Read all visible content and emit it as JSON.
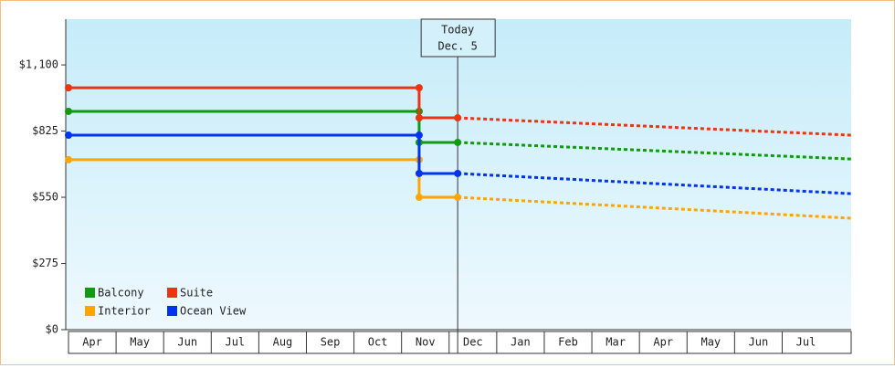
{
  "chart_data": {
    "type": "line",
    "ylim": [
      0,
      1290
    ],
    "yticks": [
      {
        "value": 0,
        "label": "$0"
      },
      {
        "value": 275,
        "label": "$275"
      },
      {
        "value": 550,
        "label": "$550"
      },
      {
        "value": 825,
        "label": "$825"
      },
      {
        "value": 1100,
        "label": "$1,100"
      }
    ],
    "xlim": [
      0,
      16.45
    ],
    "xticks": [
      {
        "value": 0,
        "label": "Apr"
      },
      {
        "value": 1,
        "label": "May"
      },
      {
        "value": 2,
        "label": "Jun"
      },
      {
        "value": 3,
        "label": "Jul"
      },
      {
        "value": 4,
        "label": "Aug"
      },
      {
        "value": 5,
        "label": "Sep"
      },
      {
        "value": 6,
        "label": "Oct"
      },
      {
        "value": 7,
        "label": "Nov"
      },
      {
        "value": 8,
        "label": "Dec"
      },
      {
        "value": 9,
        "label": "Jan"
      },
      {
        "value": 10,
        "label": "Feb"
      },
      {
        "value": 11,
        "label": "Mar"
      },
      {
        "value": 12,
        "label": "Apr"
      },
      {
        "value": 13,
        "label": "May"
      },
      {
        "value": 14,
        "label": "Jun"
      },
      {
        "value": 15,
        "label": "Jul"
      }
    ],
    "x": [
      0,
      7.37,
      7.37,
      8.18
    ],
    "forecast_x": [
      8.18,
      16.45
    ],
    "today": {
      "x": 8.18,
      "label": [
        "Today",
        "Dec. 5"
      ]
    },
    "legend": "bottom-left",
    "series": [
      {
        "name": "Balcony",
        "color": "#119911",
        "values": [
          907,
          907,
          778,
          778
        ],
        "forecast": [
          778,
          709
        ]
      },
      {
        "name": "Suite",
        "color": "#ee3311",
        "values": [
          1005,
          1005,
          880,
          880
        ],
        "forecast": [
          880,
          808
        ]
      },
      {
        "name": "Interior",
        "color": "#ffa500",
        "values": [
          706,
          706,
          550,
          550
        ],
        "forecast": [
          550,
          463
        ]
      },
      {
        "name": "Ocean View",
        "color": "#0033ee",
        "values": [
          808,
          808,
          649,
          649
        ],
        "forecast": [
          649,
          565
        ]
      }
    ]
  }
}
